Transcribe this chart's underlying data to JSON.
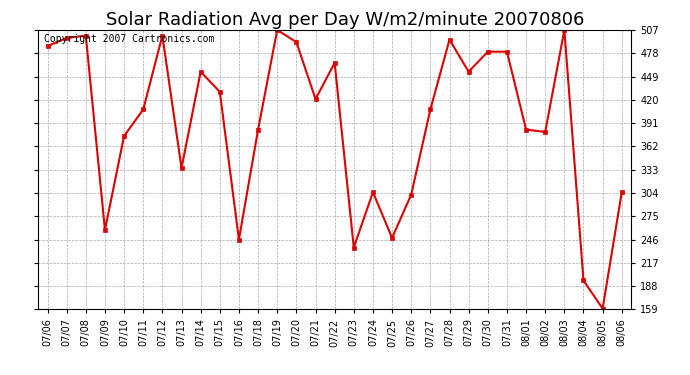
{
  "title": "Solar Radiation Avg per Day W/m2/minute 20070806",
  "copyright": "Copyright 2007 Cartronics.com",
  "dates": [
    "07/06",
    "07/07",
    "07/08",
    "07/09",
    "07/10",
    "07/11",
    "07/12",
    "07/13",
    "07/14",
    "07/15",
    "07/16",
    "07/18",
    "07/19",
    "07/20",
    "07/21",
    "07/22",
    "07/23",
    "07/24",
    "07/25",
    "07/26",
    "07/27",
    "07/28",
    "07/29",
    "07/30",
    "07/31",
    "08/01",
    "08/02",
    "08/03",
    "08/04",
    "08/05",
    "08/06"
  ],
  "values": [
    487,
    497,
    500,
    258,
    375,
    408,
    500,
    335,
    455,
    430,
    246,
    383,
    507,
    492,
    421,
    466,
    236,
    305,
    248,
    302,
    408,
    495,
    455,
    480,
    480,
    383,
    380,
    507,
    195,
    160,
    305
  ],
  "line_color": "#dd0000",
  "marker_color": "#dd0000",
  "bg_color": "#ffffff",
  "plot_bg_color": "#ffffff",
  "grid_color": "#aaaaaa",
  "yticks": [
    159.0,
    188.0,
    217.0,
    246.0,
    275.0,
    304.0,
    333.0,
    362.0,
    391.0,
    420.0,
    449.0,
    478.0,
    507.0
  ],
  "ymin": 159.0,
  "ymax": 507.0,
  "title_fontsize": 13,
  "copyright_fontsize": 7,
  "tick_fontsize": 7,
  "label_color": "#000000"
}
